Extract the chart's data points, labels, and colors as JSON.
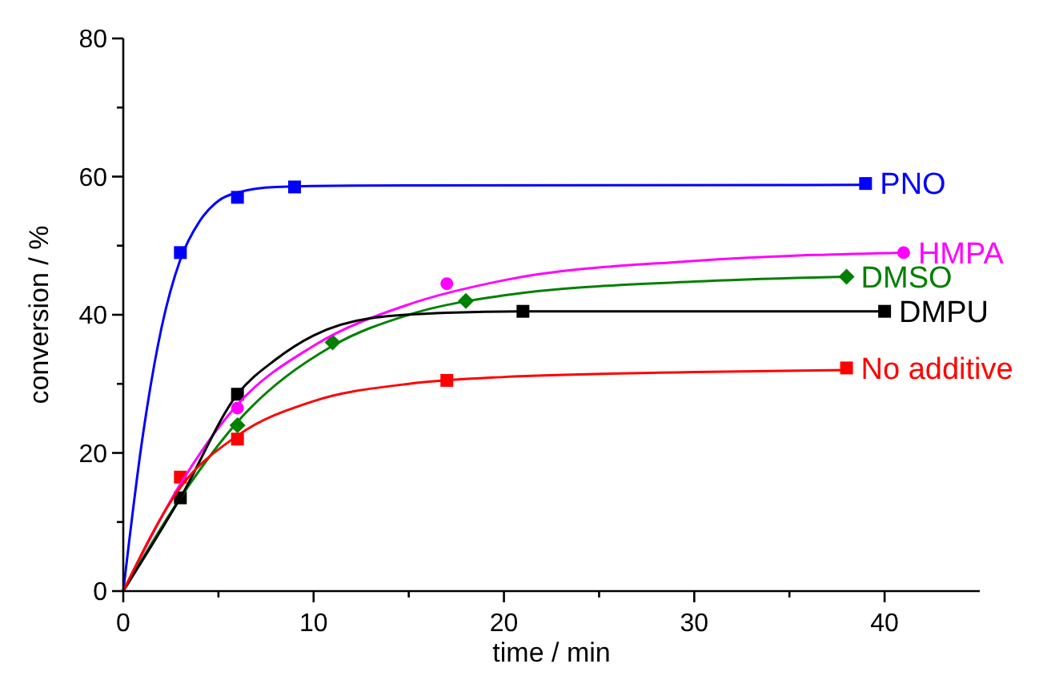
{
  "chart_data": {
    "type": "scatter",
    "xlabel": "time / min",
    "ylabel": "conversion / %",
    "xlim": [
      0,
      45
    ],
    "xticks": [
      0,
      10,
      20,
      30,
      40
    ],
    "ylim": [
      0,
      80
    ],
    "yticks": [
      0,
      20,
      40,
      60,
      80
    ],
    "grid": false,
    "series": [
      {
        "name": "PNO",
        "color": "#0000ff",
        "marker": "square",
        "x": [
          3,
          6,
          9,
          39
        ],
        "values": [
          49,
          57,
          58.5,
          59
        ]
      },
      {
        "name": "HMPA",
        "color": "#ff00ff",
        "marker": "circle",
        "x": [
          6,
          17,
          41
        ],
        "values": [
          26.5,
          44.5,
          49
        ]
      },
      {
        "name": "DMSO",
        "color": "#008000",
        "marker": "diamond",
        "x": [
          6,
          11,
          18,
          38
        ],
        "values": [
          24,
          36,
          42,
          45.5
        ]
      },
      {
        "name": "DMPU",
        "color": "#000000",
        "marker": "square",
        "x": [
          3,
          6,
          21,
          40
        ],
        "values": [
          13.5,
          28.5,
          40.5,
          40.5
        ]
      },
      {
        "name": "No additive",
        "color": "#ff0000",
        "marker": "square",
        "x": [
          3,
          6,
          17,
          38
        ],
        "values": [
          16.5,
          22,
          30.5,
          32.3
        ]
      },
      {
        "type": "line",
        "color": "#0000ff",
        "x": [
          0,
          1,
          2,
          3,
          4,
          5,
          6,
          8,
          12,
          39
        ],
        "values": [
          0,
          22,
          38,
          48,
          53.5,
          56.5,
          57.7,
          58.5,
          58.7,
          58.8
        ]
      },
      {
        "type": "line",
        "color": "#ff00ff",
        "x": [
          0,
          3,
          6,
          10,
          15,
          20,
          30,
          41
        ],
        "values": [
          0,
          15.5,
          27,
          35.5,
          41.5,
          45,
          47.8,
          49
        ]
      },
      {
        "type": "line",
        "color": "#008000",
        "x": [
          0,
          3,
          6,
          11,
          15,
          20,
          30,
          38
        ],
        "values": [
          0,
          13.5,
          24.5,
          35.5,
          40,
          42.8,
          44.8,
          45.5
        ]
      },
      {
        "type": "line",
        "color": "#000000",
        "x": [
          0,
          3,
          6,
          8,
          10,
          13,
          17,
          21,
          40
        ],
        "values": [
          0,
          13.5,
          28.5,
          33.5,
          37,
          39.5,
          40.3,
          40.5,
          40.5
        ]
      },
      {
        "type": "line",
        "color": "#ff0000",
        "x": [
          0,
          3,
          6,
          10,
          15,
          20,
          30,
          38
        ],
        "values": [
          0,
          15,
          22.5,
          27.5,
          30,
          31,
          31.7,
          32
        ]
      }
    ]
  }
}
